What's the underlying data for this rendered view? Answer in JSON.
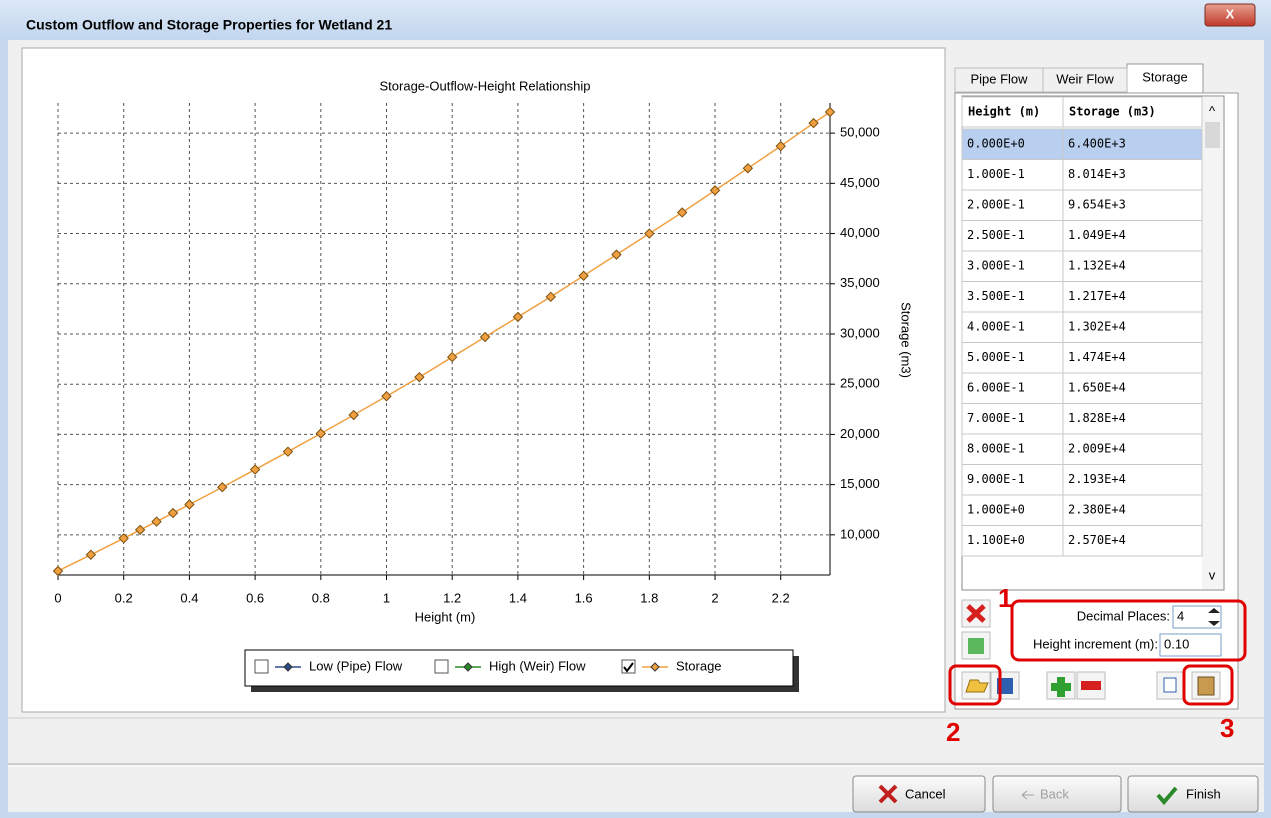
{
  "window": {
    "title": "Custom Outflow and Storage Properties for Wetland 21",
    "close": "X"
  },
  "chart_data": {
    "type": "line",
    "title": "Storage-Outflow-Height Relationship",
    "x_label": "Height (m)",
    "y_label": "Storage (m3)",
    "x": [
      0,
      0.1,
      0.2,
      0.25,
      0.3,
      0.35,
      0.4,
      0.5,
      0.6,
      0.7,
      0.8,
      0.9,
      1.0,
      1.1,
      1.2,
      1.3,
      1.4,
      1.5,
      1.6,
      1.7,
      1.8,
      1.9,
      2.0,
      2.1,
      2.2,
      2.3,
      2.35
    ],
    "series": [
      {
        "name": "Low (Pipe) Flow",
        "color": "#2f4a8a",
        "checked": false
      },
      {
        "name": "High (Weir) Flow",
        "color": "#2a8a2a",
        "checked": false
      },
      {
        "name": "Storage",
        "color": "#f0a040",
        "checked": true,
        "values": [
          6400,
          8014,
          9654,
          10490,
          11320,
          12170,
          13020,
          14740,
          16500,
          18280,
          20090,
          21930,
          23800,
          25700,
          27700,
          29700,
          31700,
          33700,
          35800,
          37900,
          40000,
          42100,
          44300,
          46500,
          48700,
          51000,
          52100
        ]
      }
    ],
    "xlim": [
      0,
      2.35
    ],
    "xticks": [
      0,
      0.2,
      0.4,
      0.6,
      0.8,
      1,
      1.2,
      1.4,
      1.6,
      1.8,
      2,
      2.2
    ],
    "ylim": [
      6000,
      53000
    ],
    "yticks": [
      {
        "value": 10000,
        "label": "10,000"
      },
      {
        "value": 15000,
        "label": "15,000"
      },
      {
        "value": 20000,
        "label": "20,000"
      },
      {
        "value": 25000,
        "label": "25,000"
      },
      {
        "value": 30000,
        "label": "30,000"
      },
      {
        "value": 35000,
        "label": "35,000"
      },
      {
        "value": 40000,
        "label": "40,000"
      },
      {
        "value": 45000,
        "label": "45,000"
      },
      {
        "value": 50000,
        "label": "50,000"
      }
    ],
    "grid": true
  },
  "tabs": [
    "Pipe Flow",
    "Weir Flow",
    "Storage"
  ],
  "table": {
    "headers": [
      "Height (m)",
      "Storage (m3)"
    ],
    "rows": [
      [
        "0.000E+0",
        "6.400E+3"
      ],
      [
        "1.000E-1",
        "8.014E+3"
      ],
      [
        "2.000E-1",
        "9.654E+3"
      ],
      [
        "2.500E-1",
        "1.049E+4"
      ],
      [
        "3.000E-1",
        "1.132E+4"
      ],
      [
        "3.500E-1",
        "1.217E+4"
      ],
      [
        "4.000E-1",
        "1.302E+4"
      ],
      [
        "5.000E-1",
        "1.474E+4"
      ],
      [
        "6.000E-1",
        "1.650E+4"
      ],
      [
        "7.000E-1",
        "1.828E+4"
      ],
      [
        "8.000E-1",
        "2.009E+4"
      ],
      [
        "9.000E-1",
        "2.193E+4"
      ],
      [
        "1.000E+0",
        "2.380E+4"
      ],
      [
        "1.100E+0",
        "2.570E+4"
      ]
    ]
  },
  "controls": {
    "decimal_label": "Decimal Places:",
    "decimal_value": "4",
    "increment_label": "Height increment (m):",
    "increment_value": "0.10"
  },
  "buttons": [
    "Cancel",
    "Back",
    "Finish"
  ],
  "annotations": [
    "1",
    "2",
    "3"
  ]
}
